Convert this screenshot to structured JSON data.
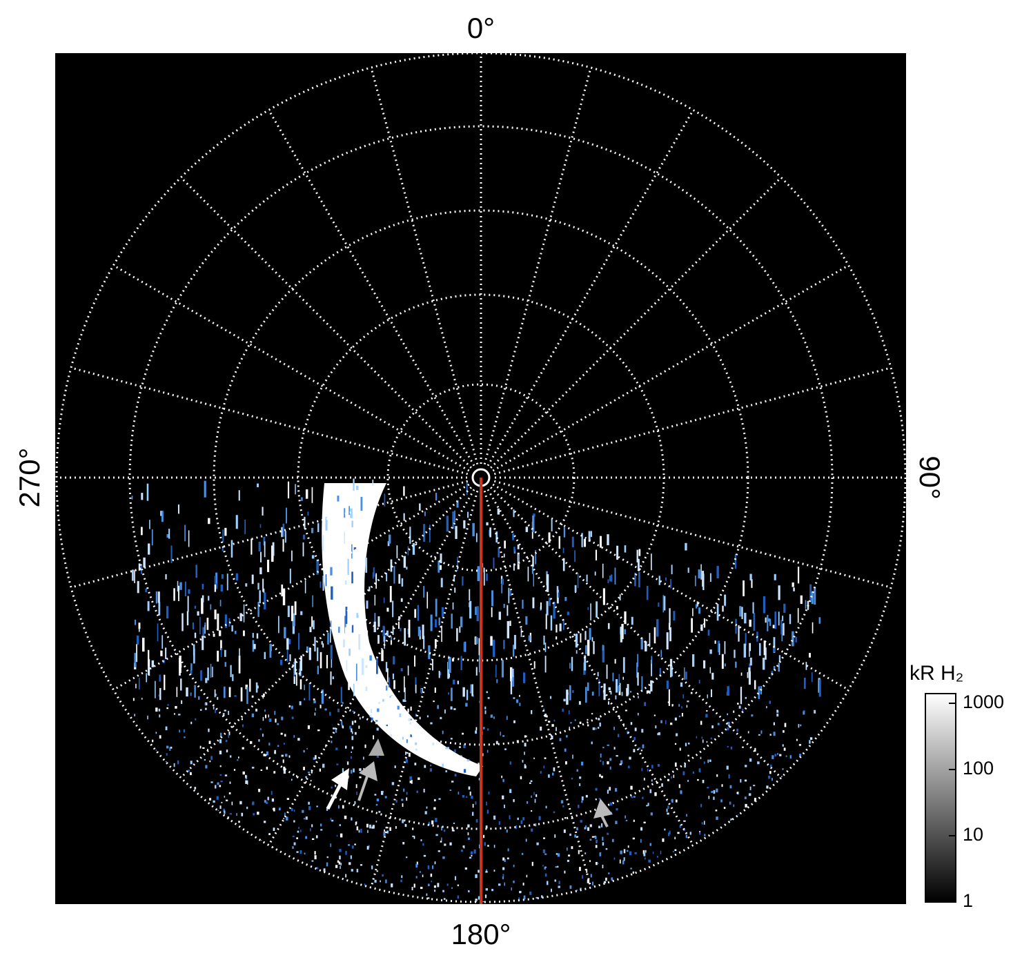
{
  "direction_labels": {
    "top": "0°",
    "right": "90°",
    "bottom": "180°",
    "left": "270°"
  },
  "colorbar": {
    "title": "kR H₂",
    "lim": [
      1,
      1400
    ],
    "ticks": [
      1,
      10,
      100,
      1000
    ],
    "log_scale": true
  }
}
